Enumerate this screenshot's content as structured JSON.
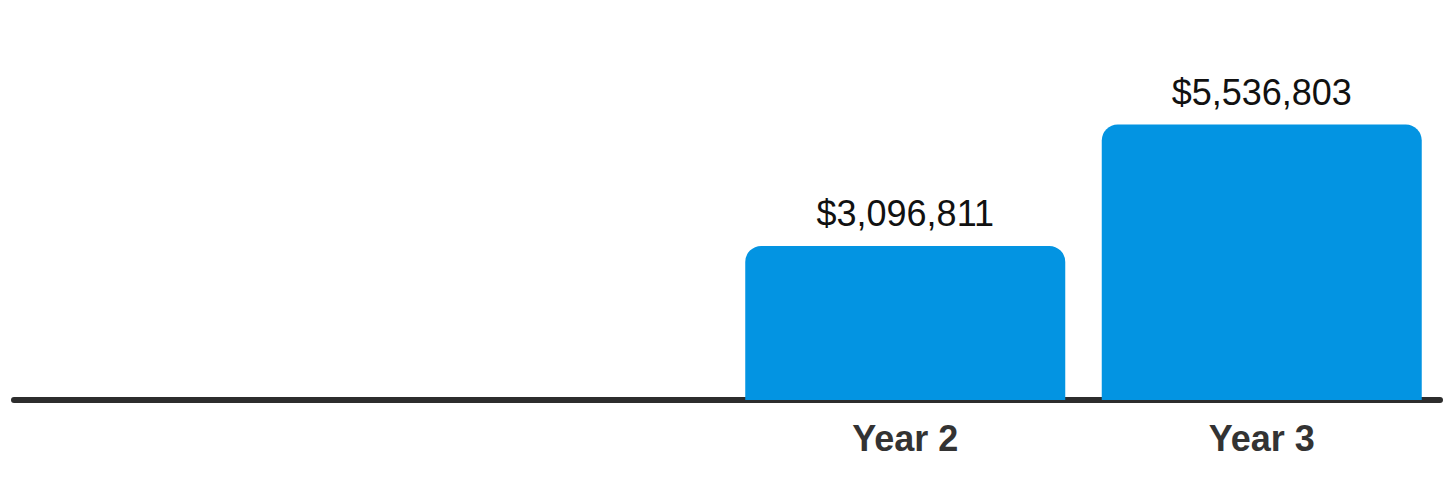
{
  "chart_data": {
    "type": "bar",
    "categories": [
      null,
      null,
      "Year 2",
      "Year 3"
    ],
    "values": [
      null,
      null,
      3096811,
      5536803
    ],
    "value_labels": [
      null,
      null,
      "$3,096,811",
      "$5,536,803"
    ],
    "color": "#0394e2",
    "ylim": [
      0,
      8000000
    ],
    "grid": false,
    "data_labels": true,
    "tick_labels": "x"
  }
}
